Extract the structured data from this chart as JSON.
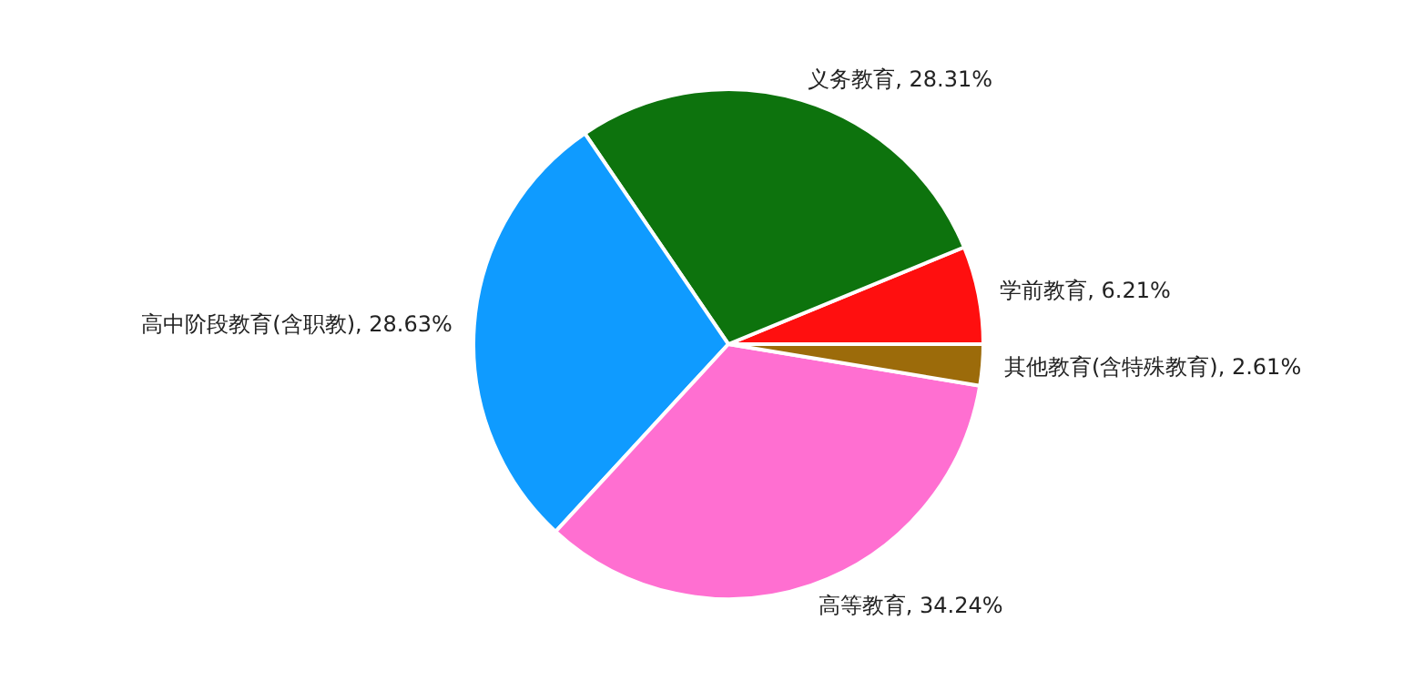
{
  "chart_data": {
    "type": "pie",
    "categories": [
      "学前教育",
      "义务教育",
      "高中阶段教育(含职教)",
      "高等教育",
      "其他教育(含特殊教育)"
    ],
    "values": [
      6.21,
      28.31,
      28.63,
      34.24,
      2.61
    ],
    "value_labels": [
      "6.21%",
      "28.31%",
      "28.63%",
      "34.24%",
      "2.61%"
    ],
    "colors": [
      "#ff0f0f",
      "#0d730d",
      "#0f9bff",
      "#ff6fd1",
      "#9c6b0a"
    ],
    "legend": false
  }
}
